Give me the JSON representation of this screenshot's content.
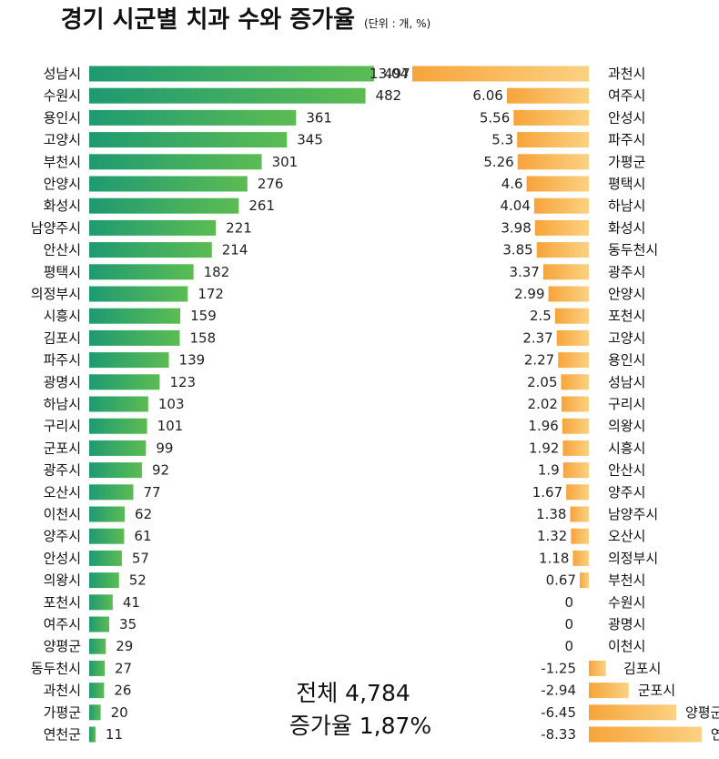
{
  "chart_data": [
    {
      "type": "bar",
      "orientation": "horizontal",
      "title": "경기 시군별 치과 수와 증가율",
      "unit_note": "(단위 : 개, %)",
      "categories": [
        "성남시",
        "수원시",
        "용인시",
        "고양시",
        "부천시",
        "안양시",
        "화성시",
        "남양주시",
        "안산시",
        "평택시",
        "의정부시",
        "시흥시",
        "김포시",
        "파주시",
        "광명시",
        "하남시",
        "구리시",
        "군포시",
        "광주시",
        "오산시",
        "이천시",
        "양주시",
        "안성시",
        "의왕시",
        "포천시",
        "여주시",
        "양평군",
        "동두천시",
        "과천시",
        "가평군",
        "연천군"
      ],
      "values": [
        497,
        482,
        361,
        345,
        301,
        276,
        261,
        221,
        214,
        182,
        172,
        159,
        158,
        139,
        123,
        103,
        101,
        99,
        92,
        77,
        62,
        61,
        57,
        52,
        41,
        35,
        29,
        27,
        26,
        20,
        11
      ],
      "colors": {
        "bar_start": "#1e9a72",
        "bar_end": "#5cbc52"
      }
    },
    {
      "type": "bar",
      "orientation": "horizontal",
      "categories": [
        "과천시",
        "여주시",
        "안성시",
        "파주시",
        "가평군",
        "평택시",
        "하남시",
        "화성시",
        "동두천시",
        "광주시",
        "안양시",
        "포천시",
        "고양시",
        "용인시",
        "성남시",
        "구리시",
        "의왕시",
        "시흥시",
        "안산시",
        "양주시",
        "남양주시",
        "오산시",
        "의정부시",
        "부천시",
        "수원시",
        "광명시",
        "이천시",
        "김포시",
        "군포시",
        "양평군",
        "연천군"
      ],
      "values": [
        13.04,
        6.06,
        5.56,
        5.3,
        5.26,
        4.6,
        4.04,
        3.98,
        3.85,
        3.37,
        2.99,
        2.5,
        2.37,
        2.27,
        2.05,
        2.02,
        1.96,
        1.92,
        1.9,
        1.67,
        1.38,
        1.32,
        1.18,
        0.67,
        0,
        0,
        0,
        -1.25,
        -2.94,
        -6.45,
        -8.33
      ],
      "labels": [
        "13.04",
        "6.06",
        "5.56",
        "5.3",
        "5.26",
        "4.6",
        "4.04",
        "3.98",
        "3.85",
        "3.37",
        "2.99",
        "2.5",
        "2.37",
        "2.27",
        "2.05",
        "2.02",
        "1.96",
        "1.92",
        "1.9",
        "1.67",
        "1.38",
        "1.32",
        "1.18",
        "0.67",
        "0",
        "0",
        "0",
        "-1.25",
        "-2.94",
        "-6.45",
        "-8.33"
      ],
      "colors": {
        "bar_start": "#f7a43a",
        "bar_end": "#fcd182"
      }
    }
  ],
  "summary": {
    "total": "전체 4,784",
    "rate": "증가율 1,87%"
  }
}
